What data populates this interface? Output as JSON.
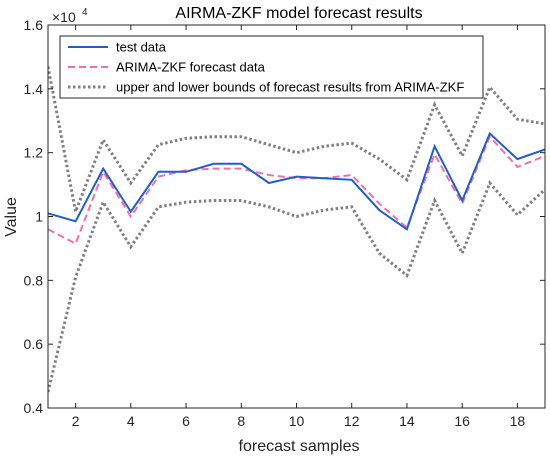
{
  "chart_data": {
    "type": "line",
    "title": "AIRMA-ZKF model forecast results",
    "xlabel": "forecast samples",
    "ylabel": "Value",
    "y_exponent_label": "×10",
    "y_exponent_power": "4",
    "xlim": [
      1,
      19
    ],
    "ylim": [
      0.4,
      1.6
    ],
    "x_ticks": [
      2,
      4,
      6,
      8,
      10,
      12,
      14,
      16,
      18
    ],
    "y_ticks": [
      0.4,
      0.6,
      0.8,
      1,
      1.2,
      1.4,
      1.6
    ],
    "y_tick_labels": [
      "0.4",
      "0.6",
      "0.8",
      "1",
      "1.2",
      "1.4",
      "1.6"
    ],
    "grid": false,
    "legend_position": "top-left",
    "x": [
      1,
      2,
      3,
      4,
      5,
      6,
      7,
      8,
      9,
      10,
      11,
      12,
      13,
      14,
      15,
      16,
      17,
      18,
      19
    ],
    "series": [
      {
        "name": "test data",
        "color": "#1f5fc8",
        "style": "solid",
        "values": [
          1.01,
          0.985,
          1.15,
          1.015,
          1.14,
          1.14,
          1.165,
          1.165,
          1.105,
          1.125,
          1.12,
          1.115,
          1.02,
          0.96,
          1.22,
          1.05,
          1.26,
          1.18,
          1.21
        ]
      },
      {
        "name": "ARIMA-ZKF forecast data",
        "color": "#f06eb0",
        "style": "dashed",
        "values": [
          0.96,
          0.915,
          1.14,
          1.0,
          1.125,
          1.145,
          1.15,
          1.15,
          1.13,
          1.12,
          1.12,
          1.13,
          1.04,
          0.965,
          1.195,
          1.04,
          1.25,
          1.155,
          1.19
        ]
      },
      {
        "name": "upper and lower bounds of forecast results from ARIMA-ZKF",
        "color": "#808080",
        "style": "dotted",
        "upper": [
          1.47,
          1.015,
          1.24,
          1.105,
          1.225,
          1.245,
          1.25,
          1.25,
          1.225,
          1.2,
          1.22,
          1.23,
          1.18,
          1.115,
          1.35,
          1.19,
          1.405,
          1.305,
          1.29
        ],
        "lower": [
          0.45,
          0.81,
          1.045,
          0.905,
          1.03,
          1.045,
          1.05,
          1.05,
          1.03,
          1.0,
          1.02,
          1.03,
          0.885,
          0.815,
          1.05,
          0.885,
          1.105,
          1.005,
          1.085
        ]
      }
    ]
  }
}
